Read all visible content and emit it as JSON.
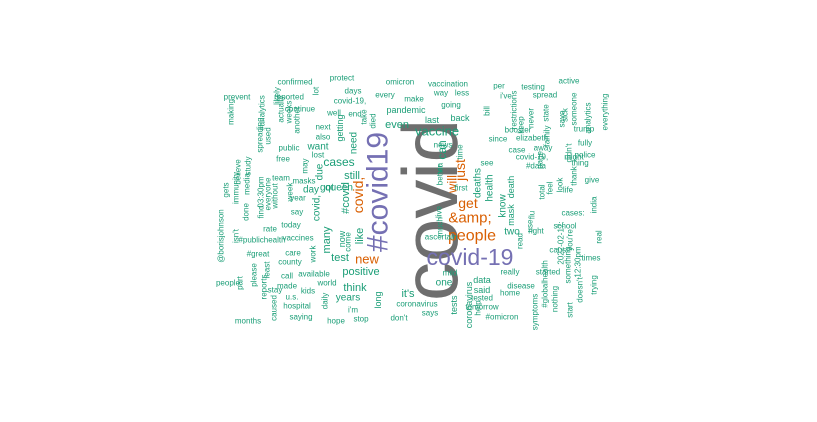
{
  "palette": {
    "large": "#6e6e6e",
    "purple": "#7570b3",
    "orange": "#d95f02",
    "teal": "#1b9e77"
  },
  "words": [
    {
      "text": "covid",
      "tone": "large"
    },
    {
      "text": "#covid19",
      "tone": "purple"
    },
    {
      "text": "covid-19",
      "tone": "purple"
    },
    {
      "text": "people",
      "tone": "orange"
    },
    {
      "text": "&amp;",
      "tone": "orange"
    },
    {
      "text": "get",
      "tone": "orange"
    },
    {
      "text": "will",
      "tone": "orange"
    },
    {
      "text": "covid,",
      "tone": "orange"
    },
    {
      "text": "new",
      "tone": "orange"
    },
    {
      "text": "just",
      "tone": "orange"
    },
    {
      "text": "can",
      "tone": "teal"
    },
    {
      "text": "vaccine",
      "tone": "teal"
    },
    {
      "text": "cases",
      "tone": "teal"
    },
    {
      "text": "test",
      "tone": "teal"
    },
    {
      "text": "positive",
      "tone": "teal"
    },
    {
      "text": "like",
      "tone": "teal"
    },
    {
      "text": "still",
      "tone": "teal"
    },
    {
      "text": "#covid",
      "tone": "teal"
    },
    {
      "text": "many",
      "tone": "teal"
    },
    {
      "text": "think",
      "tone": "teal"
    },
    {
      "text": "it's",
      "tone": "teal"
    },
    {
      "text": "one",
      "tone": "teal"
    },
    {
      "text": "even",
      "tone": "teal"
    },
    {
      "text": "deaths",
      "tone": "teal"
    },
    {
      "text": "health",
      "tone": "teal"
    },
    {
      "text": "know",
      "tone": "teal"
    },
    {
      "text": "need",
      "tone": "teal"
    },
    {
      "text": "want",
      "tone": "teal"
    },
    {
      "text": "got",
      "tone": "teal"
    },
    {
      "text": "queen",
      "tone": "teal"
    },
    {
      "text": "due",
      "tone": "teal"
    },
    {
      "text": "covid,",
      "tone": "teal"
    },
    {
      "text": "day",
      "tone": "teal"
    },
    {
      "text": "years",
      "tone": "teal"
    },
    {
      "text": "two",
      "tone": "teal"
    },
    {
      "text": "pandemic",
      "tone": "teal"
    },
    {
      "text": "last",
      "tone": "teal"
    },
    {
      "text": "back",
      "tone": "teal"
    },
    {
      "text": "death",
      "tone": "teal"
    },
    {
      "text": "coronavirus",
      "tone": "teal"
    },
    {
      "text": "data",
      "tone": "teal"
    },
    {
      "text": "said",
      "tone": "teal"
    },
    {
      "text": "tests",
      "tone": "teal"
    },
    {
      "text": "mask",
      "tone": "teal"
    },
    {
      "text": "getting",
      "tone": "teal"
    },
    {
      "text": "long",
      "tone": "teal"
    },
    {
      "text": "now",
      "tone": "teal"
    },
    {
      "text": "make",
      "tone": "teal"
    },
    {
      "text": "every",
      "tone": "teal"
    },
    {
      "text": "omicron",
      "tone": "teal"
    },
    {
      "text": "vaccination",
      "tone": "teal"
    },
    {
      "text": "way",
      "tone": "teal"
    },
    {
      "text": "less",
      "tone": "teal"
    },
    {
      "text": "going",
      "tone": "teal"
    },
    {
      "text": "since",
      "tone": "teal"
    },
    {
      "text": "time",
      "tone": "teal"
    },
    {
      "text": "coronavirus",
      "tone": "teal"
    },
    {
      "text": "tested",
      "tone": "teal"
    },
    {
      "text": "help",
      "tone": "teal"
    },
    {
      "text": "home",
      "tone": "teal"
    },
    {
      "text": "really",
      "tone": "teal"
    },
    {
      "text": "tomorrow",
      "tone": "teal"
    },
    {
      "text": "#omicron",
      "tone": "teal"
    },
    {
      "text": "disease",
      "tone": "teal"
    },
    {
      "text": "says",
      "tone": "teal"
    },
    {
      "text": "don't",
      "tone": "teal"
    },
    {
      "text": "stop",
      "tone": "teal"
    },
    {
      "text": "hope",
      "tone": "teal"
    },
    {
      "text": "i'm",
      "tone": "teal"
    },
    {
      "text": "world",
      "tone": "teal"
    },
    {
      "text": "daily",
      "tone": "teal"
    },
    {
      "text": "work",
      "tone": "teal"
    },
    {
      "text": "come",
      "tone": "teal"
    },
    {
      "text": "available",
      "tone": "teal"
    },
    {
      "text": "made",
      "tone": "teal"
    },
    {
      "text": "kids",
      "tone": "teal"
    },
    {
      "text": "hospital",
      "tone": "teal"
    },
    {
      "text": "saying",
      "tone": "teal"
    },
    {
      "text": "u.s.",
      "tone": "teal"
    },
    {
      "text": "care",
      "tone": "teal"
    },
    {
      "text": "county",
      "tone": "teal"
    },
    {
      "text": "vaccines",
      "tone": "teal"
    },
    {
      "text": "today",
      "tone": "teal"
    },
    {
      "text": "rate",
      "tone": "teal"
    },
    {
      "text": "everyone",
      "tone": "teal"
    },
    {
      "text": "masks",
      "tone": "teal"
    },
    {
      "text": "say",
      "tone": "teal"
    },
    {
      "text": "week",
      "tone": "teal"
    },
    {
      "text": "year",
      "tone": "teal"
    },
    {
      "text": "team",
      "tone": "teal"
    },
    {
      "text": "without",
      "tone": "teal"
    },
    {
      "text": "free",
      "tone": "teal"
    },
    {
      "text": "public",
      "tone": "teal"
    },
    {
      "text": "may",
      "tone": "teal"
    },
    {
      "text": "lost",
      "tone": "teal"
    },
    {
      "text": "next",
      "tone": "teal"
    },
    {
      "text": "also",
      "tone": "teal"
    },
    {
      "text": "well",
      "tone": "teal"
    },
    {
      "text": "end",
      "tone": "teal"
    },
    {
      "text": "take",
      "tone": "teal"
    },
    {
      "text": "died",
      "tone": "teal"
    },
    {
      "text": "days",
      "tone": "teal"
    },
    {
      "text": "covid-19,",
      "tone": "teal"
    },
    {
      "text": "lot",
      "tone": "teal"
    },
    {
      "text": "protect",
      "tone": "teal"
    },
    {
      "text": "confirmed",
      "tone": "teal"
    },
    {
      "text": "reported",
      "tone": "teal"
    },
    {
      "text": "likely",
      "tone": "teal"
    },
    {
      "text": "continue",
      "tone": "teal"
    },
    {
      "text": "another",
      "tone": "teal"
    },
    {
      "text": "weeks",
      "tone": "teal"
    },
    {
      "text": "actually",
      "tone": "teal"
    },
    {
      "text": "used",
      "tone": "teal"
    },
    {
      "text": "#analytics",
      "tone": "teal"
    },
    {
      "text": "spreading",
      "tone": "teal"
    },
    {
      "text": "prevent",
      "tone": "teal"
    },
    {
      "text": "making",
      "tone": "teal"
    },
    {
      "text": "gets",
      "tone": "teal"
    },
    {
      "text": "@borisjohnson",
      "tone": "teal"
    },
    {
      "text": "people",
      "tone": "teal"
    },
    {
      "text": "months",
      "tone": "teal"
    },
    {
      "text": "part",
      "tone": "teal"
    },
    {
      "text": "immunity",
      "tone": "teal"
    },
    {
      "text": "isn't",
      "tone": "teal"
    },
    {
      "text": "believe",
      "tone": "teal"
    },
    {
      "text": "media",
      "tone": "teal"
    },
    {
      "text": "study",
      "tone": "teal"
    },
    {
      "text": "03:30pm",
      "tone": "teal"
    },
    {
      "text": "find",
      "tone": "teal"
    },
    {
      "text": "done",
      "tone": "teal"
    },
    {
      "text": "#publichealth",
      "tone": "teal"
    },
    {
      "text": "#great",
      "tone": "teal"
    },
    {
      "text": "please",
      "tone": "teal"
    },
    {
      "text": "reports",
      "tone": "teal"
    },
    {
      "text": "least",
      "tone": "teal"
    },
    {
      "text": "caused",
      "tone": "teal"
    },
    {
      "text": "stay",
      "tone": "teal"
    },
    {
      "text": "call",
      "tone": "teal"
    },
    {
      "text": "per",
      "tone": "teal"
    },
    {
      "text": "bill",
      "tone": "teal"
    },
    {
      "text": "i've",
      "tone": "teal"
    },
    {
      "text": "restrictions",
      "tone": "teal"
    },
    {
      "text": "booster",
      "tone": "teal"
    },
    {
      "text": "case",
      "tone": "teal"
    },
    {
      "text": "elizabeth",
      "tone": "teal"
    },
    {
      "text": "never",
      "tone": "teal"
    },
    {
      "text": "keep",
      "tone": "teal"
    },
    {
      "text": "testing",
      "tone": "teal"
    },
    {
      "text": "spread",
      "tone": "teal"
    },
    {
      "text": "state",
      "tone": "teal"
    },
    {
      "text": "family",
      "tone": "teal"
    },
    {
      "text": "save",
      "tone": "teal"
    },
    {
      "text": "active",
      "tone": "teal"
    },
    {
      "text": "sick",
      "tone": "teal"
    },
    {
      "text": "someone",
      "tone": "teal"
    },
    {
      "text": "analytics",
      "tone": "teal"
    },
    {
      "text": "everything",
      "tone": "teal"
    },
    {
      "text": "trump",
      "tone": "teal"
    },
    {
      "text": "fully",
      "tone": "teal"
    },
    {
      "text": "might",
      "tone": "teal"
    },
    {
      "text": "didn't",
      "tone": "teal"
    },
    {
      "text": "police",
      "tone": "teal"
    },
    {
      "text": "thing",
      "tone": "teal"
    },
    {
      "text": "thank",
      "tone": "teal"
    },
    {
      "text": "give",
      "tone": "teal"
    },
    {
      "text": "india",
      "tone": "teal"
    },
    {
      "text": "real",
      "tone": "teal"
    },
    {
      "text": "times",
      "tone": "teal"
    },
    {
      "text": "trying",
      "tone": "teal"
    },
    {
      "text": "12:30pm",
      "tone": "teal"
    },
    {
      "text": "doesn't",
      "tone": "teal"
    },
    {
      "text": "you're",
      "tone": "teal"
    },
    {
      "text": "start",
      "tone": "teal"
    },
    {
      "text": "nothing",
      "tone": "teal"
    },
    {
      "text": "something",
      "tone": "teal"
    },
    {
      "text": "2022-02-17:",
      "tone": "teal"
    },
    {
      "text": "started",
      "tone": "teal"
    },
    {
      "text": "#globalhealth",
      "tone": "teal"
    },
    {
      "text": "cause",
      "tone": "teal"
    },
    {
      "text": "school",
      "tone": "teal"
    },
    {
      "text": "cases:",
      "tone": "teal"
    },
    {
      "text": "life",
      "tone": "teal"
    },
    {
      "text": "look",
      "tone": "teal"
    },
    {
      "text": "feel",
      "tone": "teal"
    },
    {
      "text": "page",
      "tone": "teal"
    },
    {
      "text": "away",
      "tone": "teal"
    },
    {
      "text": "#data",
      "tone": "teal"
    },
    {
      "text": "covid-19,",
      "tone": "teal"
    },
    {
      "text": "total",
      "tone": "teal"
    },
    {
      "text": "flu",
      "tone": "teal"
    },
    {
      "text": "use",
      "tone": "teal"
    },
    {
      "text": "right",
      "tone": "teal"
    },
    {
      "text": "read",
      "tone": "teal"
    },
    {
      "text": "symptoms",
      "tone": "teal"
    },
    {
      "text": "news",
      "tone": "teal"
    },
    {
      "text": "better",
      "tone": "teal"
    },
    {
      "text": "live",
      "tone": "teal"
    },
    {
      "text": "much",
      "tone": "teal"
    },
    {
      "text": "ascertain",
      "tone": "teal"
    },
    {
      "text": "mild",
      "tone": "teal"
    },
    {
      "text": "via",
      "tone": "teal"
    },
    {
      "text": "see",
      "tone": "teal"
    },
    {
      "text": "first",
      "tone": "teal"
    },
    {
      "text": "risk",
      "tone": "teal"
    },
    {
      "text": "covid",
      "tone": "teal"
    },
    {
      "text": "dies",
      "tone": "teal"
    },
    {
      "text": "covid",
      "tone": "teal"
    }
  ]
}
